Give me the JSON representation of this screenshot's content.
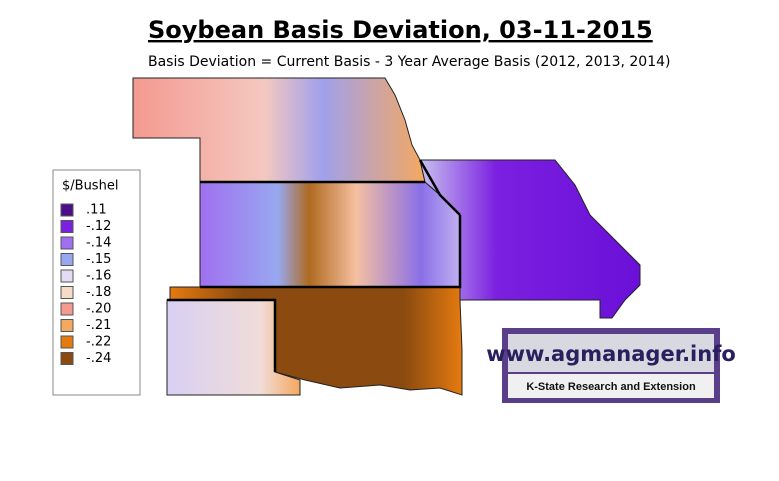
{
  "header": {
    "title": "Soybean Basis Deviation, 03-11-2015",
    "subtitle": "Basis Deviation = Current Basis - 3 Year Average Basis (2012, 2013, 2014)"
  },
  "legend": {
    "title": "$/Bushel",
    "items": [
      {
        "label": ".11",
        "color": "#4b0f8c"
      },
      {
        "label": "-.12",
        "color": "#7b1fe0"
      },
      {
        "label": "-.14",
        "color": "#a070f0"
      },
      {
        "label": "-.15",
        "color": "#98a8f0"
      },
      {
        "label": "-.16",
        "color": "#e4dcf4"
      },
      {
        "label": "-.18",
        "color": "#f6dcc8"
      },
      {
        "label": "-.20",
        "color": "#f49a90"
      },
      {
        "label": "-.21",
        "color": "#f5a860"
      },
      {
        "label": "-.22",
        "color": "#e57a10"
      },
      {
        "label": "-.24",
        "color": "#8a4a10"
      }
    ]
  },
  "logo": {
    "url": "www.agmanager.info",
    "org": "K-State Research and Extension"
  }
}
